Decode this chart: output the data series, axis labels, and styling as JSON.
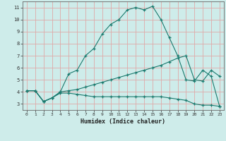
{
  "xlabel": "Humidex (Indice chaleur)",
  "xlim": [
    -0.5,
    23.5
  ],
  "ylim": [
    2.5,
    11.5
  ],
  "yticks": [
    3,
    4,
    5,
    6,
    7,
    8,
    9,
    10,
    11
  ],
  "xticks": [
    0,
    1,
    2,
    3,
    4,
    5,
    6,
    7,
    8,
    9,
    10,
    11,
    12,
    13,
    14,
    15,
    16,
    17,
    18,
    19,
    20,
    21,
    22,
    23
  ],
  "background_color": "#ceecea",
  "grid_color": "#dfa8a8",
  "line_color": "#1a7a6e",
  "series": [
    {
      "x": [
        0,
        1,
        2,
        3,
        4,
        5,
        6,
        7,
        8,
        9,
        10,
        11,
        12,
        13,
        14,
        15,
        16,
        17,
        18,
        19,
        20,
        21,
        22,
        23
      ],
      "y": [
        4.1,
        4.1,
        3.2,
        3.5,
        4.0,
        5.5,
        5.8,
        7.0,
        7.6,
        8.8,
        9.6,
        10.0,
        10.8,
        11.0,
        10.8,
        11.1,
        10.0,
        8.5,
        7.0,
        5.0,
        4.9,
        5.8,
        5.3,
        2.8
      ]
    },
    {
      "x": [
        0,
        1,
        2,
        3,
        4,
        5,
        6,
        7,
        8,
        9,
        10,
        11,
        12,
        13,
        14,
        15,
        16,
        17,
        18,
        19,
        20,
        21,
        22,
        23
      ],
      "y": [
        4.1,
        4.1,
        3.2,
        3.5,
        4.0,
        4.1,
        4.2,
        4.4,
        4.6,
        4.8,
        5.0,
        5.2,
        5.4,
        5.6,
        5.8,
        6.0,
        6.2,
        6.5,
        6.8,
        7.0,
        5.0,
        4.9,
        5.8,
        5.3
      ]
    },
    {
      "x": [
        0,
        1,
        2,
        3,
        4,
        5,
        6,
        7,
        8,
        9,
        10,
        11,
        12,
        13,
        14,
        15,
        16,
        17,
        18,
        19,
        20,
        21,
        22,
        23
      ],
      "y": [
        4.1,
        4.1,
        3.2,
        3.5,
        3.9,
        3.9,
        3.8,
        3.7,
        3.6,
        3.6,
        3.6,
        3.6,
        3.6,
        3.6,
        3.6,
        3.6,
        3.6,
        3.5,
        3.4,
        3.3,
        3.0,
        2.9,
        2.9,
        2.8
      ]
    }
  ]
}
